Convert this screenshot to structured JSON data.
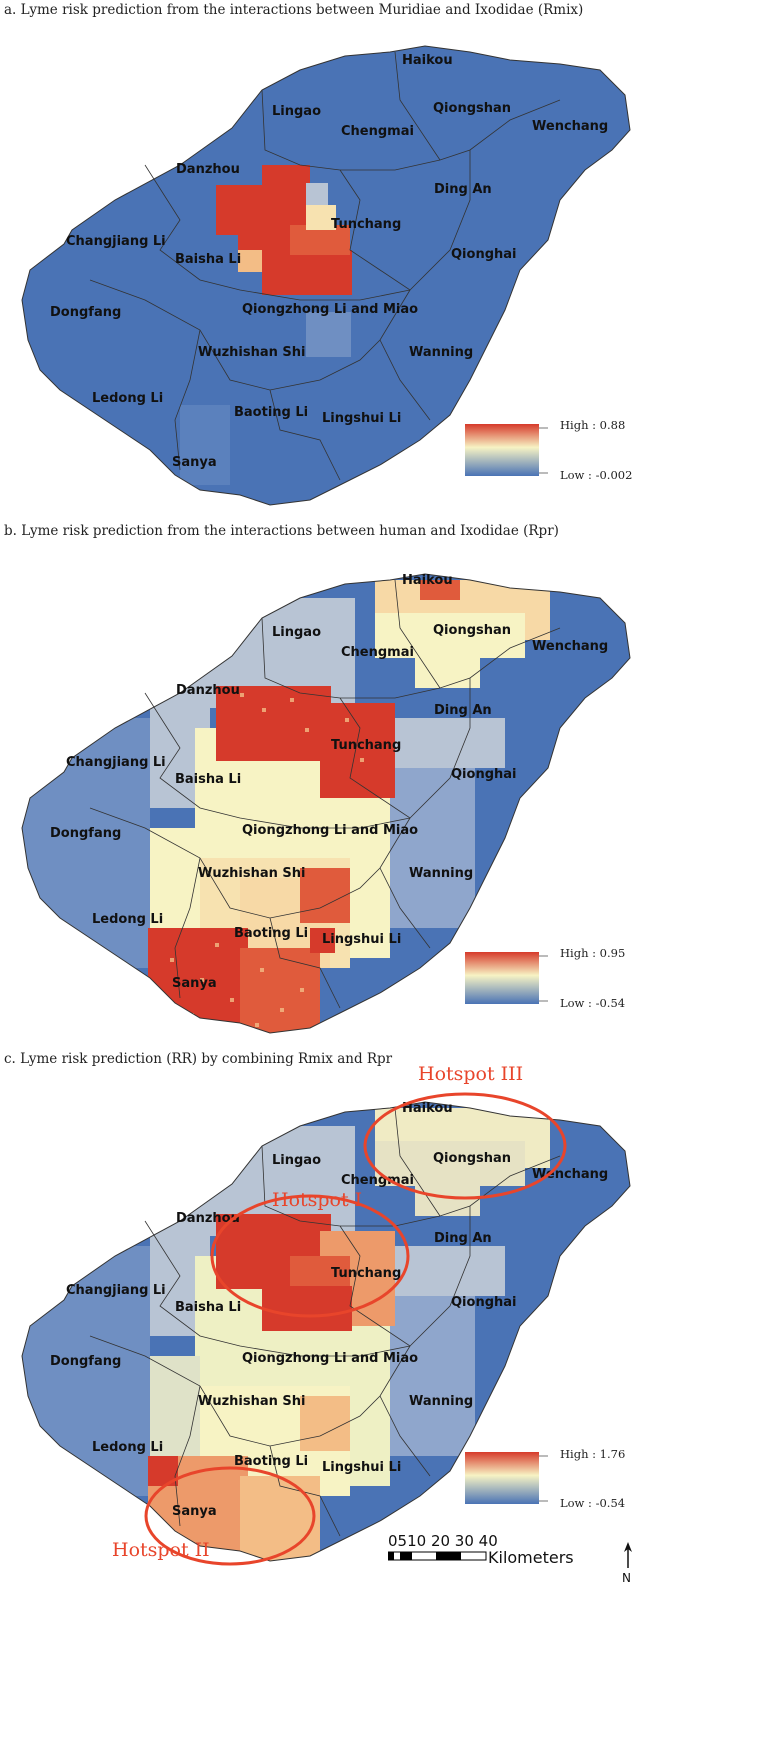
{
  "panels": [
    {
      "title": "a. Lyme risk prediction from the interactions between Muridiae and Ixodidae (Rmix)",
      "legend_high": "High : 0.88",
      "legend_low": "Low : -0.002"
    },
    {
      "title": "b. Lyme risk prediction from the interactions between human and Ixodidae (Rpr)",
      "legend_high": "High : 0.95",
      "legend_low": "Low : -0.54"
    },
    {
      "title": "c. Lyme risk prediction (RR) by combining Rmix and Rpr",
      "legend_high": "High : 1.76",
      "legend_low": "Low : -0.54"
    }
  ],
  "regions": {
    "haikou": "Haikou",
    "qiongshan": "Qiongshan",
    "wenchang": "Wenchang",
    "lingao": "Lingao",
    "chengmai": "Chengmai",
    "danzhou": "Danzhou",
    "ding_an": "Ding An",
    "tunchang": "Tunchang",
    "changjiang": "Changjiang Li",
    "baisha": "Baisha Li",
    "qionghai": "Qionghai",
    "qiongzhong": "Qiongzhong Li and Miao",
    "dongfang": "Dongfang",
    "wuzhishan": "Wuzhishan Shi",
    "wanning": "Wanning",
    "ledong": "Ledong Li",
    "baoting": "Baoting Li",
    "lingshui": "Lingshui Li",
    "sanya": "Sanya"
  },
  "hotspots": {
    "one": "Hotspot I",
    "two": "Hotspot II",
    "three": "Hotspot III"
  },
  "scale_bar": {
    "numbers": "0510 20 30 40",
    "unit": "Kilometers"
  },
  "north_arrow": "N",
  "colors": {
    "low": "#4a73b5",
    "mid": "#f7f3c4",
    "high": "#d63a2b",
    "hotspot_ring": "#e8452b"
  }
}
